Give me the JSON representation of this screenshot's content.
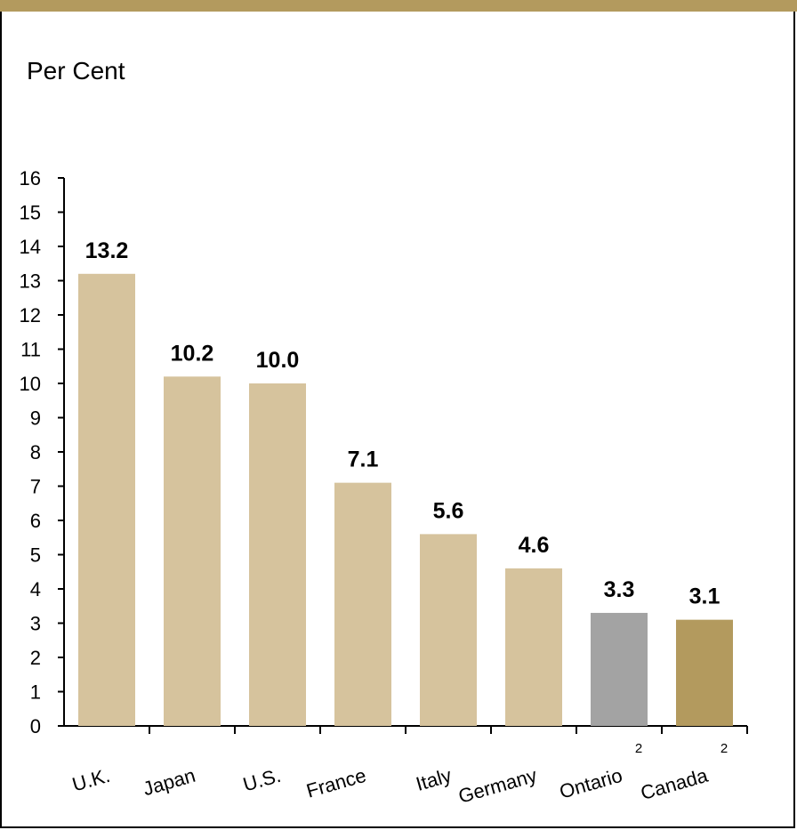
{
  "chart_data": {
    "type": "bar",
    "ylabel": "Per Cent",
    "ylim": [
      0,
      16
    ],
    "yticks": [
      0,
      1,
      2,
      3,
      4,
      5,
      6,
      7,
      8,
      9,
      10,
      11,
      12,
      13,
      14,
      15,
      16
    ],
    "categories": [
      "U.K.",
      "Japan",
      "U.S.",
      "France",
      "Italy",
      "Germany",
      "Ontario",
      "Canada"
    ],
    "category_superscripts": [
      "",
      "",
      "",
      "",
      "",
      "",
      "2",
      "2"
    ],
    "values": [
      13.2,
      10.2,
      10.0,
      7.1,
      5.6,
      4.6,
      3.3,
      3.1
    ],
    "value_labels": [
      "13.2",
      "10.2",
      "10.0",
      "7.1",
      "5.6",
      "4.6",
      "3.3",
      "3.1"
    ],
    "bar_colors": [
      "#d6c39d",
      "#d6c39d",
      "#d6c39d",
      "#d6c39d",
      "#d6c39d",
      "#d6c39d",
      "#a3a3a3",
      "#b39a5e"
    ],
    "grid": false,
    "legend": "none"
  },
  "colors": {
    "accent": "#b39a5e"
  }
}
